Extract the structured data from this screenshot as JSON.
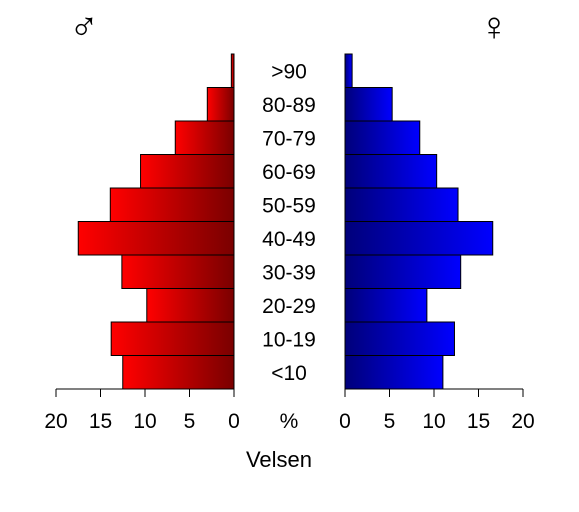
{
  "chart_data": {
    "type": "bar",
    "orientation": "horizontal",
    "subtype": "population-pyramid",
    "categories": [
      "<10",
      "10-19",
      "20-29",
      "30-39",
      "40-49",
      "50-59",
      "60-69",
      "70-79",
      "80-89",
      ">90"
    ],
    "series": [
      {
        "symbol": "♂",
        "values": [
          12.5,
          13.8,
          9.8,
          12.6,
          17.5,
          13.9,
          10.5,
          6.6,
          3.0,
          0.3
        ],
        "color_light": "#ff0000",
        "color_dark": "#7a0000"
      },
      {
        "symbol": "♀",
        "values": [
          11.0,
          12.3,
          9.2,
          13.0,
          16.6,
          12.7,
          10.3,
          8.4,
          5.3,
          0.8
        ],
        "color_light": "#0000ff",
        "color_dark": "#00007a"
      }
    ],
    "xlim": [
      0,
      20
    ],
    "ticks": [
      "0",
      "5",
      "10",
      "15",
      "20"
    ],
    "unit_label": "%",
    "xlabel": "Velsen",
    "grid": false
  }
}
